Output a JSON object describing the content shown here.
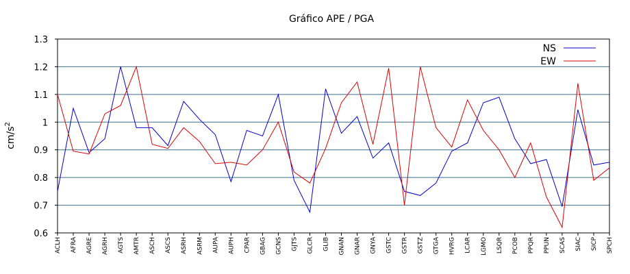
{
  "chart_data": {
    "type": "line",
    "title": "Gráfico  APE / PGA",
    "ylabel": "cm/s",
    "ylabel_superscript": "2",
    "ylim": [
      0.6,
      1.3
    ],
    "yticks": [
      "0.6",
      "0.7",
      "0.8",
      "0.9",
      "1",
      "1.1",
      "1.2",
      "1.3"
    ],
    "grid": "horizontal",
    "legend_placement": "top-right",
    "categories": [
      "ACLH",
      "AFRA",
      "AGRE",
      "AGRH",
      "AGTS",
      "AMTR",
      "ASCH",
      "ASCS",
      "ASRH",
      "ASRM",
      "AUPA",
      "AUPH",
      "CPAR",
      "GBAG",
      "GCNS",
      "GJTS",
      "GLCR",
      "GLIB",
      "GNAN",
      "GNAR",
      "GNYA",
      "GSTC",
      "GSTR",
      "GSTZ",
      "GTGA",
      "HVRG",
      "LCAR",
      "LGMO",
      "LSQR",
      "PCOB",
      "PPQR",
      "PPUN",
      "SCAS",
      "SIAC",
      "SICP",
      "SPCH"
    ],
    "series": [
      {
        "name": "NS",
        "color": "#0000cc",
        "values": [
          0.75,
          1.05,
          0.89,
          0.94,
          1.2,
          0.98,
          0.98,
          0.915,
          1.075,
          1.01,
          0.955,
          0.785,
          0.97,
          0.95,
          1.1,
          0.79,
          0.675,
          1.12,
          0.96,
          1.02,
          0.87,
          0.925,
          0.75,
          0.735,
          0.78,
          0.895,
          0.925,
          1.07,
          1.09,
          0.94,
          0.85,
          0.865,
          0.695,
          1.045,
          0.845,
          0.855
        ]
      },
      {
        "name": "EW",
        "color": "#dd0000",
        "values": [
          1.1,
          0.895,
          0.885,
          1.03,
          1.06,
          1.2,
          0.92,
          0.905,
          0.98,
          0.93,
          0.85,
          0.855,
          0.845,
          0.9,
          1.0,
          0.82,
          0.78,
          0.905,
          1.07,
          1.145,
          0.92,
          1.195,
          0.7,
          1.2,
          0.98,
          0.91,
          1.08,
          0.97,
          0.9,
          0.8,
          0.925,
          0.73,
          0.62,
          1.14,
          0.79,
          0.835
        ]
      }
    ]
  }
}
